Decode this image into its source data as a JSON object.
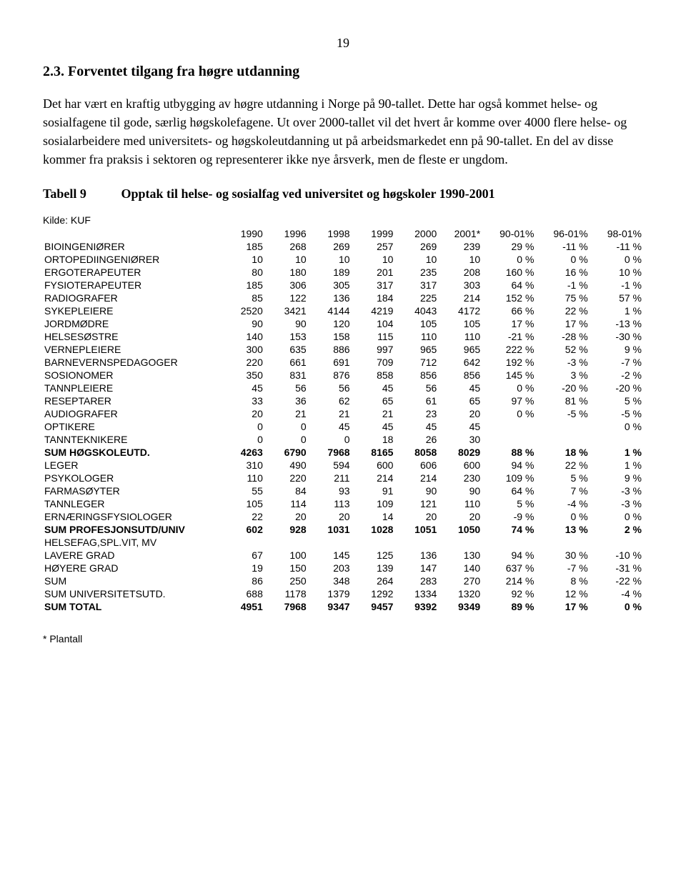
{
  "page_number": "19",
  "heading": "2.3. Forventet tilgang fra høgre utdanning",
  "para1": "Det har vært en kraftig utbygging av høgre utdanning i Norge på 90-tallet. Dette har også kommet helse- og sosialfagene til gode, særlig høgskolefagene. Ut over 2000-tallet vil det hvert år komme over 4000 flere helse- og sosialarbeidere med universitets- og høgskoleutdanning ut på arbeidsmarkedet enn på 90-tallet. En del av disse kommer fra praksis i sektoren og representerer ikke nye årsverk, men de fleste er ungdom.",
  "table_label": "Tabell 9",
  "table_title": "Opptak til helse- og sosialfag ved universitet og høgskoler 1990-2001",
  "source": "Kilde: KUF",
  "columns": [
    "1990",
    "1996",
    "1998",
    "1999",
    "2000",
    "2001*",
    "90-01%",
    "96-01%",
    "98-01%"
  ],
  "rows": [
    {
      "label": "BIOINGENIØRER",
      "v": [
        "185",
        "268",
        "269",
        "257",
        "269",
        "239",
        "29 %",
        "-11 %",
        "-11 %"
      ]
    },
    {
      "label": "ORTOPEDIINGENIØRER",
      "v": [
        "10",
        "10",
        "10",
        "10",
        "10",
        "10",
        "0 %",
        "0 %",
        "0 %"
      ]
    },
    {
      "label": "ERGOTERAPEUTER",
      "v": [
        "80",
        "180",
        "189",
        "201",
        "235",
        "208",
        "160 %",
        "16 %",
        "10 %"
      ]
    },
    {
      "label": "FYSIOTERAPEUTER",
      "v": [
        "185",
        "306",
        "305",
        "317",
        "317",
        "303",
        "64 %",
        "-1 %",
        "-1 %"
      ]
    },
    {
      "label": "RADIOGRAFER",
      "v": [
        "85",
        "122",
        "136",
        "184",
        "225",
        "214",
        "152 %",
        "75 %",
        "57 %"
      ]
    },
    {
      "label": "SYKEPLEIERE",
      "v": [
        "2520",
        "3421",
        "4144",
        "4219",
        "4043",
        "4172",
        "66 %",
        "22 %",
        "1 %"
      ]
    },
    {
      "label": "JORDMØDRE",
      "v": [
        "90",
        "90",
        "120",
        "104",
        "105",
        "105",
        "17 %",
        "17 %",
        "-13 %"
      ]
    },
    {
      "label": "HELSESØSTRE",
      "v": [
        "140",
        "153",
        "158",
        "115",
        "110",
        "110",
        "-21 %",
        "-28 %",
        "-30 %"
      ]
    },
    {
      "label": "VERNEPLEIERE",
      "v": [
        "300",
        "635",
        "886",
        "997",
        "965",
        "965",
        "222 %",
        "52 %",
        "9 %"
      ]
    },
    {
      "label": "BARNEVERNSPEDAGOGER",
      "v": [
        "220",
        "661",
        "691",
        "709",
        "712",
        "642",
        "192 %",
        "-3 %",
        "-7 %"
      ]
    },
    {
      "label": "SOSIONOMER",
      "v": [
        "350",
        "831",
        "876",
        "858",
        "856",
        "856",
        "145 %",
        "3 %",
        "-2 %"
      ]
    },
    {
      "label": "TANNPLEIERE",
      "v": [
        "45",
        "56",
        "56",
        "45",
        "56",
        "45",
        "0 %",
        "-20 %",
        "-20 %"
      ]
    },
    {
      "label": "RESEPTARER",
      "v": [
        "33",
        "36",
        "62",
        "65",
        "61",
        "65",
        "97 %",
        "81 %",
        "5 %"
      ]
    },
    {
      "label": "AUDIOGRAFER",
      "v": [
        "20",
        "21",
        "21",
        "21",
        "23",
        "20",
        "0 %",
        "-5 %",
        "-5 %"
      ]
    },
    {
      "label": "OPTIKERE",
      "v": [
        "0",
        "0",
        "45",
        "45",
        "45",
        "45",
        "",
        "",
        "0 %"
      ]
    },
    {
      "label": "TANNTEKNIKERE",
      "v": [
        "0",
        "0",
        "0",
        "18",
        "26",
        "30",
        "",
        "",
        ""
      ]
    },
    {
      "label": "SUM HØGSKOLEUTD.",
      "v": [
        "4263",
        "6790",
        "7968",
        "8165",
        "8058",
        "8029",
        "88 %",
        "18 %",
        "1 %"
      ],
      "bold": true
    },
    {
      "label": "LEGER",
      "v": [
        "310",
        "490",
        "594",
        "600",
        "606",
        "600",
        "94 %",
        "22 %",
        "1 %"
      ]
    },
    {
      "label": "PSYKOLOGER",
      "v": [
        "110",
        "220",
        "211",
        "214",
        "214",
        "230",
        "109 %",
        "5 %",
        "9 %"
      ]
    },
    {
      "label": "FARMASØYTER",
      "v": [
        "55",
        "84",
        "93",
        "91",
        "90",
        "90",
        "64 %",
        "7 %",
        "-3 %"
      ]
    },
    {
      "label": "TANNLEGER",
      "v": [
        "105",
        "114",
        "113",
        "109",
        "121",
        "110",
        "5 %",
        "-4 %",
        "-3 %"
      ]
    },
    {
      "label": "ERNÆRINGSFYSIOLOGER",
      "v": [
        "22",
        "20",
        "20",
        "14",
        "20",
        "20",
        "-9 %",
        "0 %",
        "0 %"
      ]
    },
    {
      "label": "SUM PROFESJONSUTD/UNIV",
      "v": [
        "602",
        "928",
        "1031",
        "1028",
        "1051",
        "1050",
        "74 %",
        "13 %",
        "2 %"
      ],
      "bold": true
    },
    {
      "label": "HELSEFAG,SPL.VIT, MV",
      "v": [
        "",
        "",
        "",
        "",
        "",
        "",
        "",
        "",
        ""
      ]
    },
    {
      "label": "LAVERE GRAD",
      "v": [
        "67",
        "100",
        "145",
        "125",
        "136",
        "130",
        "94 %",
        "30 %",
        "-10 %"
      ]
    },
    {
      "label": "HØYERE GRAD",
      "v": [
        "19",
        "150",
        "203",
        "139",
        "147",
        "140",
        "637 %",
        "-7 %",
        "-31 %"
      ]
    },
    {
      "label": "SUM",
      "v": [
        "86",
        "250",
        "348",
        "264",
        "283",
        "270",
        "214 %",
        "8 %",
        "-22 %"
      ]
    },
    {
      "label": "SUM UNIVERSITETSUTD.",
      "v": [
        "688",
        "1178",
        "1379",
        "1292",
        "1334",
        "1320",
        "92 %",
        "12 %",
        "-4 %"
      ]
    },
    {
      "label": "SUM TOTAL",
      "v": [
        "4951",
        "7968",
        "9347",
        "9457",
        "9392",
        "9349",
        "89 %",
        "17 %",
        "0 %"
      ],
      "bold": true
    }
  ],
  "footnote": "* Plantall"
}
